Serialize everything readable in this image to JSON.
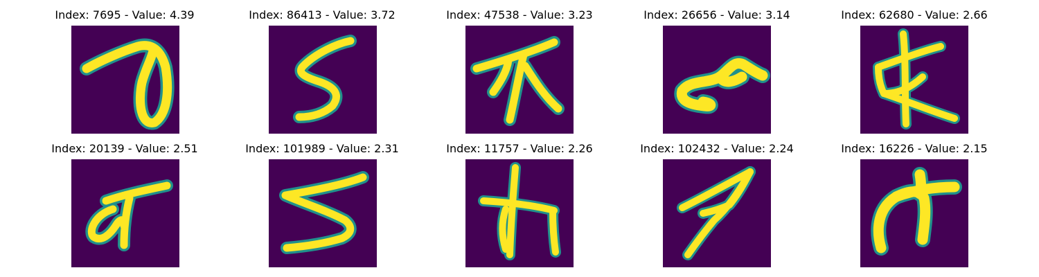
{
  "panels": [
    {
      "title": "Index: 7695 - Value: 4.39",
      "glyph": "glyph-a"
    },
    {
      "title": "Index: 86413 - Value: 3.72",
      "glyph": "glyph-b"
    },
    {
      "title": "Index: 47538 - Value: 3.23",
      "glyph": "glyph-c"
    },
    {
      "title": "Index: 26656 - Value: 3.14",
      "glyph": "glyph-d"
    },
    {
      "title": "Index: 62680 - Value: 2.66",
      "glyph": "glyph-e"
    },
    {
      "title": "Index: 20139 - Value: 2.51",
      "glyph": "glyph-f"
    },
    {
      "title": "Index: 101989 - Value: 2.31",
      "glyph": "glyph-g"
    },
    {
      "title": "Index: 11757 - Value: 2.26",
      "glyph": "glyph-h"
    },
    {
      "title": "Index: 102432 - Value: 2.24",
      "glyph": "glyph-i"
    },
    {
      "title": "Index: 16226 - Value: 2.15",
      "glyph": "glyph-j"
    }
  ],
  "colors": {
    "background": "#440154",
    "stroke_edge": "#21918c",
    "stroke_core": "#fde725"
  }
}
